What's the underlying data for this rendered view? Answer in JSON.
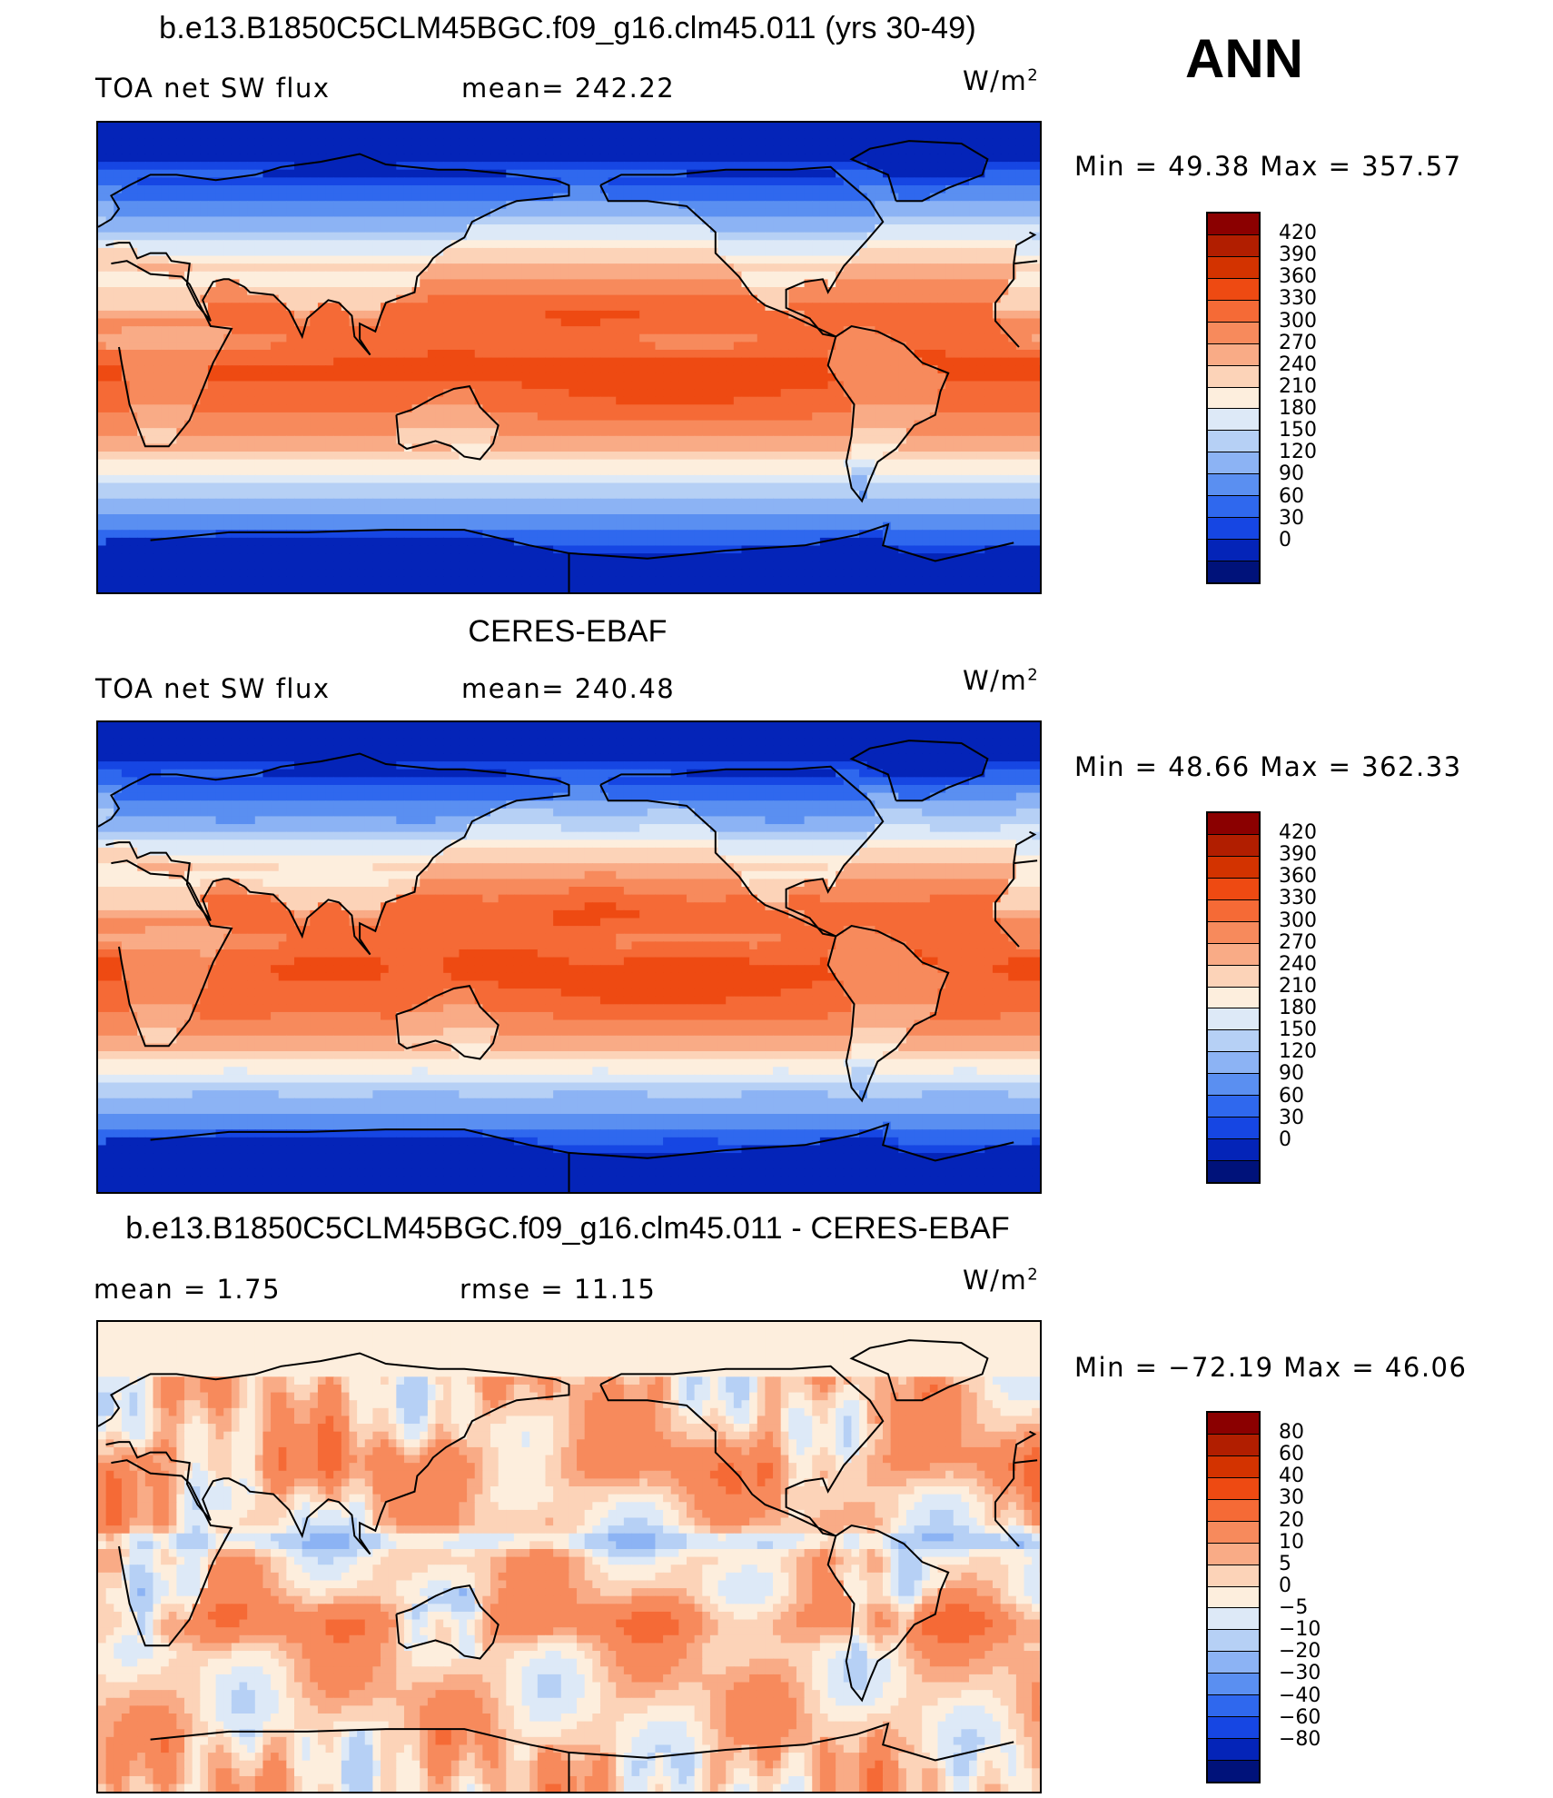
{
  "season": "ANN",
  "panels": [
    {
      "title": "b.e13.B1850C5CLM45BGC.f09_g16.clm45.011 (yrs 30-49)",
      "left_label": "TOA net SW flux",
      "center_label": "mean= 242.22",
      "units_base": "W/m",
      "units_exp": "2",
      "minmax": "Min =   49.38 Max = 357.57",
      "colorbar": {
        "ticks": [
          "420",
          "390",
          "360",
          "330",
          "300",
          "270",
          "240",
          "210",
          "180",
          "150",
          "120",
          "90",
          "60",
          "30",
          "0"
        ],
        "colors": [
          "#8b0000",
          "#b11e00",
          "#d33300",
          "#ee4a12",
          "#f56a36",
          "#f78a5c",
          "#f9ab86",
          "#fcd3b8",
          "#fdeedd",
          "#dde9f7",
          "#b6d0f5",
          "#8cb3f4",
          "#5a8ff1",
          "#2f68ee",
          "#1646e3",
          "#0424b8",
          "#00127a"
        ]
      },
      "field": "sw_model"
    },
    {
      "title": "CERES-EBAF",
      "left_label": "TOA net SW flux",
      "center_label": "mean= 240.48",
      "units_base": "W/m",
      "units_exp": "2",
      "minmax": "Min =   48.66 Max = 362.33",
      "colorbar": {
        "ticks": [
          "420",
          "390",
          "360",
          "330",
          "300",
          "270",
          "240",
          "210",
          "180",
          "150",
          "120",
          "90",
          "60",
          "30",
          "0"
        ],
        "colors": [
          "#8b0000",
          "#b11e00",
          "#d33300",
          "#ee4a12",
          "#f56a36",
          "#f78a5c",
          "#f9ab86",
          "#fcd3b8",
          "#fdeedd",
          "#dde9f7",
          "#b6d0f5",
          "#8cb3f4",
          "#5a8ff1",
          "#2f68ee",
          "#1646e3",
          "#0424b8",
          "#00127a"
        ]
      },
      "field": "sw_obs"
    },
    {
      "title": "b.e13.B1850C5CLM45BGC.f09_g16.clm45.011 - CERES-EBAF",
      "left_label": "mean =    1.75",
      "center_label": "rmse =    11.15",
      "units_base": "W/m",
      "units_exp": "2",
      "minmax": "Min = −72.19 Max =   46.06",
      "colorbar": {
        "ticks": [
          "80",
          "60",
          "40",
          "30",
          "20",
          "10",
          "5",
          "0",
          "−5",
          "−10",
          "−20",
          "−30",
          "−40",
          "−60",
          "−80"
        ],
        "colors": [
          "#8b0000",
          "#b11e00",
          "#d33300",
          "#ee4a12",
          "#f56a36",
          "#f78a5c",
          "#f9ab86",
          "#fcd3b8",
          "#fdeedd",
          "#dde9f7",
          "#b6d0f5",
          "#8cb3f4",
          "#5a8ff1",
          "#2f68ee",
          "#1646e3",
          "#0424b8",
          "#00127a"
        ]
      },
      "field": "sw_diff"
    }
  ]
}
